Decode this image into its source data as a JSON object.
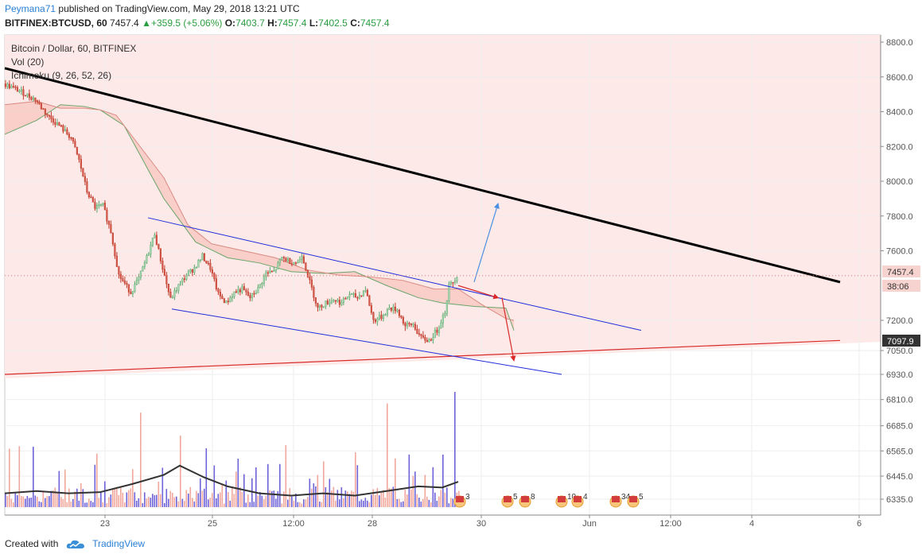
{
  "header": {
    "author": "Peymana71",
    "published_text": "published on TradingView.com, May 29, 2018 13:21 UTC",
    "symbol": "BITFINEX:BTCUSD, 60",
    "last": "7457.4",
    "change": "+359.5 (+5.06%)",
    "open_label": "O:",
    "open": "7403.7",
    "high_label": "H:",
    "high": "7457.4",
    "low_label": "L:",
    "low": "7402.5",
    "close_label": "C:",
    "close": "7457.4"
  },
  "legend": {
    "title": "Bitcoin / Dollar, 60, BITFINEX",
    "vol": "Vol (20)",
    "ichimoku": "Ichimoku (9, 26, 52, 26)"
  },
  "footer": {
    "created_with": "Created with",
    "brand": "TradingView"
  },
  "colors": {
    "up": "#f2a79c",
    "down": "#6f63d9",
    "blue": "#1f2ddb",
    "red_line": "#d92a2a",
    "black_line": "#000000"
  },
  "chart_data": {
    "type": "candlestick",
    "symbol": "BTCUSD",
    "price_axis_ticks": [
      8800.0,
      8600.0,
      8400.0,
      8200.0,
      8000.0,
      7800.0,
      7600.0,
      7200.0,
      7050.0,
      6930.0,
      6810.0,
      6685.0,
      6565.0,
      6445.0,
      6335.0
    ],
    "price_axis_labels": [
      "8800.0",
      "8600.0",
      "8400.0",
      "8200.0",
      "8000.0",
      "7800.0",
      "7600.0",
      "7200.0",
      "7050.0",
      "6930.0",
      "6810.0",
      "6685.0",
      "6565.0",
      "6445.0",
      "6335.0"
    ],
    "time_axis_labels": [
      "23",
      "25",
      "12:00",
      "28",
      "30",
      "Jun",
      "12:00",
      "4",
      "6"
    ],
    "price_tags": [
      {
        "label": "7457.4",
        "value": 7457.4
      },
      {
        "label": "38:06",
        "value": 7380
      },
      {
        "label": "7097.9",
        "value": 7097.9
      }
    ],
    "price_path": [
      [
        0,
        8560
      ],
      [
        4,
        8520
      ],
      [
        8,
        8470
      ],
      [
        11,
        8380
      ],
      [
        14,
        8320
      ],
      [
        17,
        8250
      ],
      [
        19,
        8120
      ],
      [
        21,
        7940
      ],
      [
        23,
        7850
      ],
      [
        25,
        7860
      ],
      [
        27,
        7710
      ],
      [
        29,
        7460
      ],
      [
        32,
        7360
      ],
      [
        34,
        7440
      ],
      [
        36,
        7560
      ],
      [
        38,
        7700
      ],
      [
        40,
        7500
      ],
      [
        42,
        7320
      ],
      [
        44,
        7400
      ],
      [
        46,
        7460
      ],
      [
        48,
        7500
      ],
      [
        50,
        7570
      ],
      [
        52,
        7500
      ],
      [
        54,
        7350
      ],
      [
        56,
        7300
      ],
      [
        58,
        7360
      ],
      [
        60,
        7380
      ],
      [
        62,
        7330
      ],
      [
        64,
        7380
      ],
      [
        66,
        7470
      ],
      [
        68,
        7480
      ],
      [
        70,
        7560
      ],
      [
        72,
        7540
      ],
      [
        74,
        7530
      ],
      [
        75,
        7580
      ],
      [
        77,
        7420
      ],
      [
        79,
        7270
      ],
      [
        81,
        7300
      ],
      [
        83,
        7320
      ],
      [
        85,
        7300
      ],
      [
        87,
        7350
      ],
      [
        89,
        7330
      ],
      [
        91,
        7380
      ],
      [
        93,
        7200
      ],
      [
        95,
        7220
      ],
      [
        97,
        7270
      ],
      [
        99,
        7260
      ],
      [
        101,
        7170
      ],
      [
        103,
        7180
      ],
      [
        105,
        7110
      ],
      [
        107,
        7100
      ],
      [
        109,
        7150
      ],
      [
        111,
        7250
      ],
      [
        112,
        7400
      ],
      [
        113,
        7420
      ],
      [
        114,
        7457.4
      ]
    ],
    "ichimoku_cloud": {
      "span_a": [
        [
          0,
          8270
        ],
        [
          8,
          8350
        ],
        [
          14,
          8440
        ],
        [
          20,
          8430
        ],
        [
          24,
          8410
        ],
        [
          30,
          8320
        ],
        [
          40,
          7900
        ],
        [
          48,
          7650
        ],
        [
          56,
          7560
        ],
        [
          64,
          7530
        ],
        [
          72,
          7480
        ],
        [
          80,
          7470
        ],
        [
          88,
          7480
        ],
        [
          96,
          7400
        ],
        [
          104,
          7330
        ],
        [
          110,
          7300
        ],
        [
          118,
          7280
        ],
        [
          126,
          7270
        ],
        [
          128,
          7150
        ]
      ],
      "span_b": [
        [
          0,
          8440
        ],
        [
          8,
          8460
        ],
        [
          14,
          8420
        ],
        [
          20,
          8420
        ],
        [
          24,
          8410
        ],
        [
          28,
          8380
        ],
        [
          34,
          8200
        ],
        [
          40,
          8020
        ],
        [
          46,
          7750
        ],
        [
          52,
          7640
        ],
        [
          60,
          7600
        ],
        [
          68,
          7560
        ],
        [
          76,
          7490
        ],
        [
          84,
          7460
        ],
        [
          92,
          7450
        ],
        [
          100,
          7430
        ],
        [
          108,
          7380
        ],
        [
          114,
          7380
        ],
        [
          120,
          7290
        ],
        [
          126,
          7210
        ],
        [
          128,
          7200
        ]
      ]
    },
    "volume_ma": [
      [
        0,
        0.12
      ],
      [
        8,
        0.14
      ],
      [
        16,
        0.12
      ],
      [
        24,
        0.13
      ],
      [
        32,
        0.2
      ],
      [
        40,
        0.28
      ],
      [
        44,
        0.36
      ],
      [
        50,
        0.26
      ],
      [
        56,
        0.18
      ],
      [
        64,
        0.12
      ],
      [
        72,
        0.1
      ],
      [
        80,
        0.12
      ],
      [
        88,
        0.1
      ],
      [
        96,
        0.14
      ],
      [
        104,
        0.18
      ],
      [
        110,
        0.17
      ],
      [
        114,
        0.22
      ]
    ],
    "volume_spikes": [
      [
        34,
        0.82
      ],
      [
        44,
        0.62
      ],
      [
        96,
        0.9
      ],
      [
        113,
        1.0
      ]
    ],
    "trendlines": [
      {
        "kind": "resistance_major",
        "color": "black",
        "from": [
          0,
          8650
        ],
        "to": [
          210,
          7420
        ]
      },
      {
        "kind": "support_major",
        "color": "red",
        "from": [
          0,
          6930
        ],
        "to": [
          210,
          7100
        ]
      },
      {
        "kind": "channel_upper",
        "color": "blue",
        "from": [
          36,
          7790
        ],
        "to": [
          160,
          7150
        ]
      },
      {
        "kind": "channel_lower",
        "color": "blue",
        "from": [
          42,
          7265
        ],
        "to": [
          140,
          6930
        ]
      }
    ],
    "projections": [
      {
        "color": "blue",
        "from": [
          118,
          7420
        ],
        "to": [
          124,
          7870
        ]
      },
      {
        "color": "red",
        "from": [
          114,
          7400
        ],
        "to": [
          124,
          7330
        ]
      },
      {
        "color": "red",
        "from": [
          125,
          7330
        ],
        "to": [
          128,
          7000
        ]
      }
    ],
    "events": [
      "3",
      "5",
      "8",
      "10",
      "4",
      "34",
      "5"
    ]
  }
}
